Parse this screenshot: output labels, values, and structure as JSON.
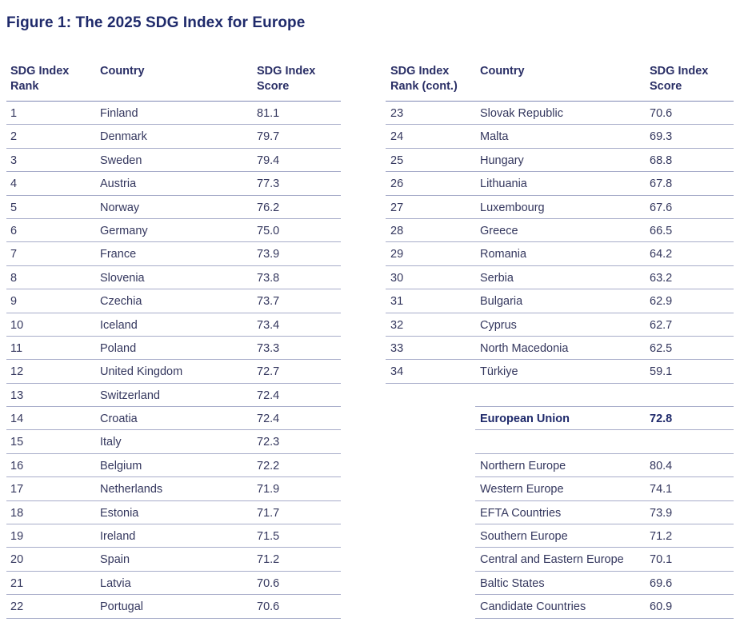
{
  "title": "Figure 1: The 2025 SDG Index for Europe",
  "left_headers": {
    "rank": "SDG Index\nRank",
    "country": "Country",
    "score": "SDG Index\nScore"
  },
  "right_headers": {
    "rank": "SDG Index\nRank (cont.)",
    "country": "Country",
    "score": "SDG Index\nScore"
  },
  "left_rows": [
    {
      "rank": "1",
      "country": "Finland",
      "score": "81.1"
    },
    {
      "rank": "2",
      "country": "Denmark",
      "score": "79.7"
    },
    {
      "rank": "3",
      "country": "Sweden",
      "score": "79.4"
    },
    {
      "rank": "4",
      "country": "Austria",
      "score": "77.3"
    },
    {
      "rank": "5",
      "country": "Norway",
      "score": "76.2"
    },
    {
      "rank": "6",
      "country": "Germany",
      "score": "75.0"
    },
    {
      "rank": "7",
      "country": "France",
      "score": "73.9"
    },
    {
      "rank": "8",
      "country": "Slovenia",
      "score": "73.8"
    },
    {
      "rank": "9",
      "country": "Czechia",
      "score": "73.7"
    },
    {
      "rank": "10",
      "country": "Iceland",
      "score": "73.4"
    },
    {
      "rank": "11",
      "country": "Poland",
      "score": "73.3"
    },
    {
      "rank": "12",
      "country": "United Kingdom",
      "score": "72.7"
    },
    {
      "rank": "13",
      "country": "Switzerland",
      "score": "72.4"
    },
    {
      "rank": "14",
      "country": "Croatia",
      "score": "72.4"
    },
    {
      "rank": "15",
      "country": "Italy",
      "score": "72.3"
    },
    {
      "rank": "16",
      "country": "Belgium",
      "score": "72.2"
    },
    {
      "rank": "17",
      "country": "Netherlands",
      "score": "71.9"
    },
    {
      "rank": "18",
      "country": "Estonia",
      "score": "71.7"
    },
    {
      "rank": "19",
      "country": "Ireland",
      "score": "71.5"
    },
    {
      "rank": "20",
      "country": "Spain",
      "score": "71.2"
    },
    {
      "rank": "21",
      "country": "Latvia",
      "score": "70.6"
    },
    {
      "rank": "22",
      "country": "Portugal",
      "score": "70.6"
    }
  ],
  "right_rows": [
    {
      "rank": "23",
      "country": "Slovak Republic",
      "score": "70.6"
    },
    {
      "rank": "24",
      "country": "Malta",
      "score": "69.3"
    },
    {
      "rank": "25",
      "country": "Hungary",
      "score": "68.8"
    },
    {
      "rank": "26",
      "country": "Lithuania",
      "score": "67.8"
    },
    {
      "rank": "27",
      "country": "Luxembourg",
      "score": "67.6"
    },
    {
      "rank": "28",
      "country": "Greece",
      "score": "66.5"
    },
    {
      "rank": "29",
      "country": "Romania",
      "score": "64.2"
    },
    {
      "rank": "30",
      "country": "Serbia",
      "score": "63.2"
    },
    {
      "rank": "31",
      "country": "Bulgaria",
      "score": "62.9"
    },
    {
      "rank": "32",
      "country": "Cyprus",
      "score": "62.7"
    },
    {
      "rank": "33",
      "country": "North Macedonia",
      "score": "62.5"
    },
    {
      "rank": "34",
      "country": "Türkiye",
      "score": "59.1"
    }
  ],
  "eu_row": {
    "country": "European Union",
    "score": "72.8"
  },
  "region_rows": [
    {
      "country": "Northern Europe",
      "score": "80.4"
    },
    {
      "country": "Western Europe",
      "score": "74.1"
    },
    {
      "country": "EFTA Countries",
      "score": "73.9"
    },
    {
      "country": "Southern Europe",
      "score": "71.2"
    },
    {
      "country": "Central and Eastern Europe",
      "score": "70.1"
    },
    {
      "country": "Baltic States",
      "score": "69.6"
    },
    {
      "country": "Candidate Countries",
      "score": "60.9"
    }
  ]
}
